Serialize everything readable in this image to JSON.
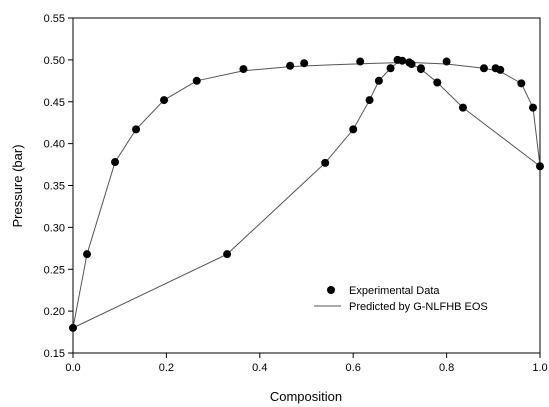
{
  "chart_data": {
    "type": "scatter",
    "title": "",
    "xlabel": "Composition",
    "ylabel": "Pressure (bar)",
    "xlim": [
      0.0,
      1.0
    ],
    "ylim": [
      0.15,
      0.55
    ],
    "xticks": [
      "0.0",
      "0.2",
      "0.4",
      "0.6",
      "0.8",
      "1.0"
    ],
    "yticks": [
      "0.15",
      "0.20",
      "0.25",
      "0.30",
      "0.35",
      "0.40",
      "0.45",
      "0.50",
      "0.55"
    ],
    "xtick_values": [
      0.0,
      0.2,
      0.4,
      0.6,
      0.8,
      1.0
    ],
    "ytick_values": [
      0.15,
      0.2,
      0.25,
      0.3,
      0.35,
      0.4,
      0.45,
      0.5,
      0.55
    ],
    "grid": false,
    "legend_position": "bottom-right",
    "series": [
      {
        "name": "Experimental Data",
        "kind": "scatter",
        "color": "#000000",
        "x": [
          0.0,
          0.03,
          0.09,
          0.135,
          0.195,
          0.265,
          0.365,
          0.465,
          0.495,
          0.615,
          0.695,
          0.705,
          0.72,
          0.745,
          0.8,
          0.88,
          0.905,
          0.915,
          0.96,
          0.985,
          1.0,
          0.33,
          0.54,
          0.6,
          0.635,
          0.655,
          0.68,
          0.725,
          0.745,
          0.78,
          0.835
        ],
        "y": [
          0.18,
          0.268,
          0.378,
          0.417,
          0.452,
          0.475,
          0.489,
          0.493,
          0.496,
          0.498,
          0.5,
          0.499,
          0.497,
          0.49,
          0.498,
          0.49,
          0.49,
          0.488,
          0.472,
          0.443,
          0.373,
          0.268,
          0.377,
          0.417,
          0.452,
          0.475,
          0.49,
          0.495,
          0.489,
          0.473,
          0.443
        ]
      },
      {
        "name": "Predicted by G-NLFHB EOS",
        "kind": "line",
        "color": "#555555",
        "curves": [
          {
            "x": [
              0.0,
              0.03,
              0.09,
              0.135,
              0.195,
              0.265,
              0.365,
              0.465,
              0.55,
              0.65,
              0.72,
              0.8,
              0.88,
              0.915,
              0.96,
              0.985,
              1.0
            ],
            "y": [
              0.18,
              0.268,
              0.378,
              0.417,
              0.452,
              0.475,
              0.487,
              0.492,
              0.494,
              0.496,
              0.497,
              0.495,
              0.49,
              0.486,
              0.472,
              0.443,
              0.373
            ]
          },
          {
            "x": [
              0.0,
              0.33,
              0.54,
              0.6,
              0.635,
              0.655,
              0.68,
              0.695,
              0.705,
              0.725,
              0.745,
              0.78,
              0.835,
              1.0
            ],
            "y": [
              0.18,
              0.268,
              0.377,
              0.417,
              0.452,
              0.475,
              0.49,
              0.497,
              0.5,
              0.495,
              0.489,
              0.473,
              0.443,
              0.373
            ]
          }
        ]
      }
    ]
  }
}
